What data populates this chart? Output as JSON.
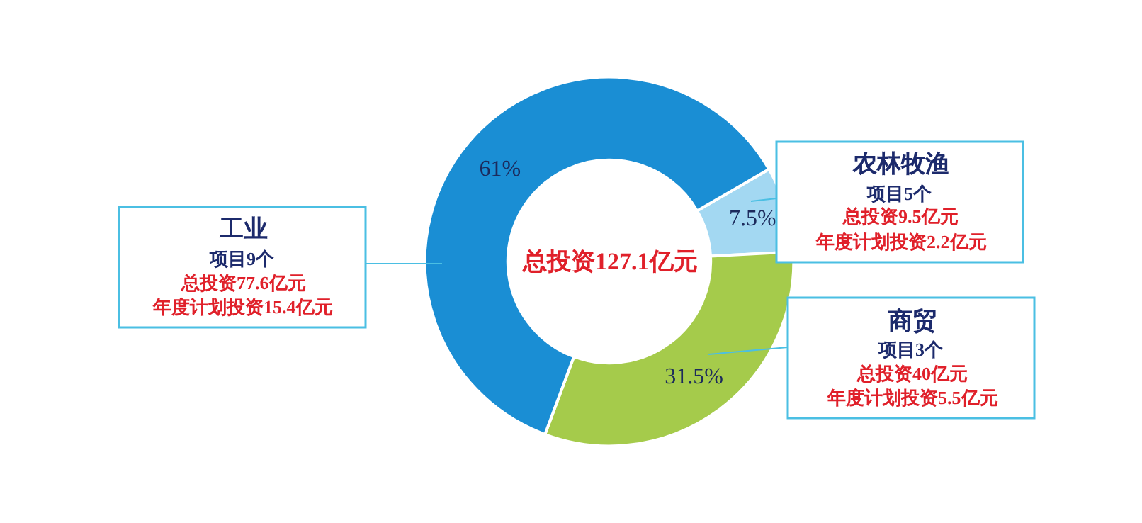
{
  "chart_data": {
    "type": "donut",
    "categories": [
      "农林牧渔",
      "商贸",
      "工业"
    ],
    "values": [
      7.5,
      31.5,
      61
    ],
    "colors": [
      "#a3d8f2",
      "#a5cb4b",
      "#1a8ed4"
    ],
    "value_labels": [
      "7.5%",
      "31.5%",
      "61%"
    ],
    "legend": false,
    "annotations": [
      "总投资127.1亿元",
      "项目5个",
      "总投资9.5亿元",
      "年度计划投资2.2亿元",
      "项目3个",
      "总投资40亿元",
      "年度计划投资5.5亿元",
      "项目9个",
      "总投资77.6亿元",
      "年度计划投资15.4亿元"
    ]
  }
}
